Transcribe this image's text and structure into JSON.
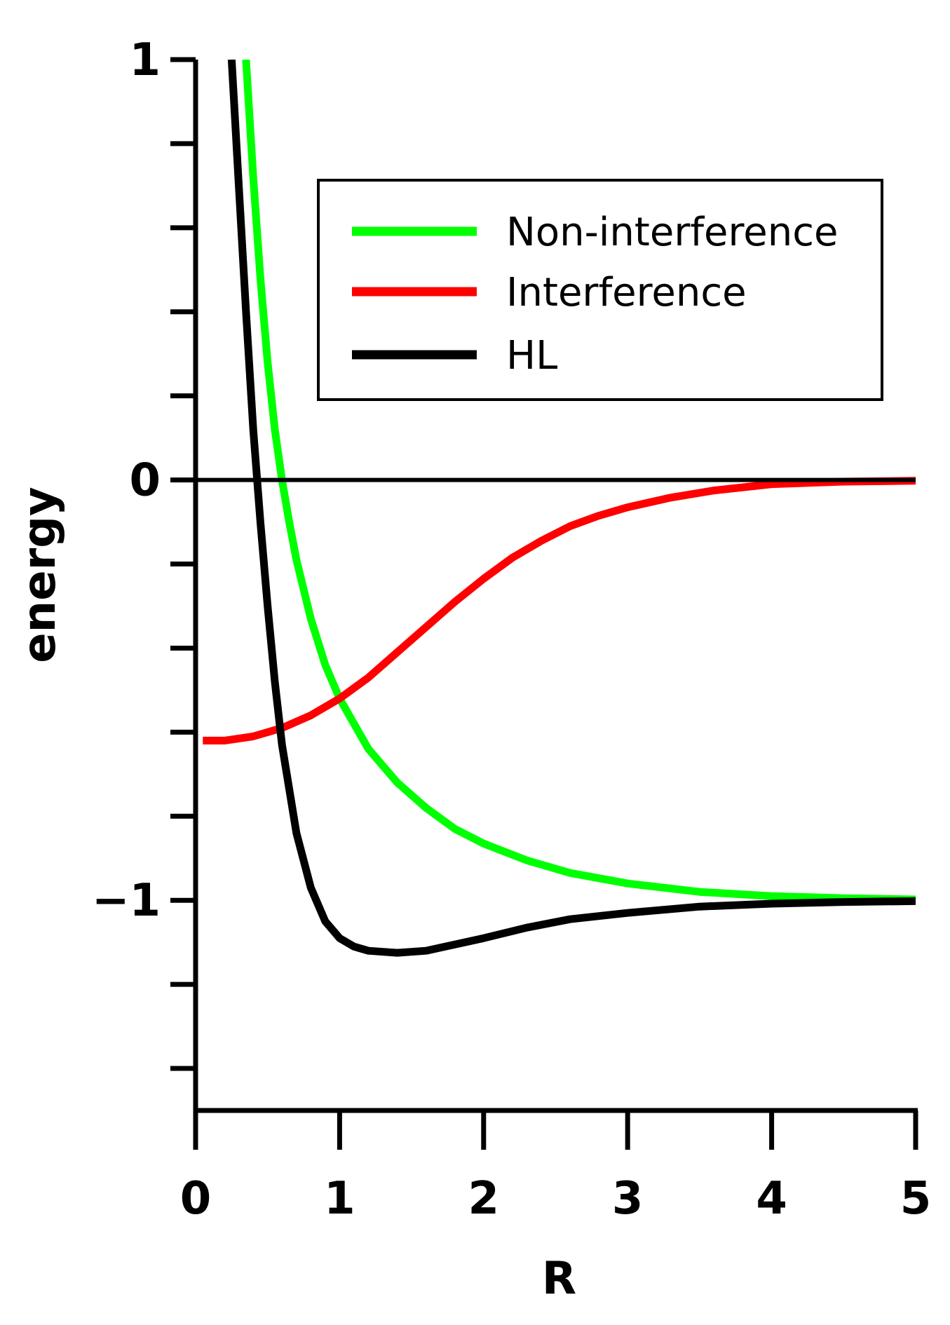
{
  "chart_data": {
    "type": "line",
    "title": "",
    "xlabel": "R",
    "ylabel": "energy",
    "xlim": [
      0,
      5
    ],
    "ylim": [
      -1.5,
      1
    ],
    "x_ticks": [
      0,
      1,
      2,
      3,
      4,
      5
    ],
    "x_tick_labels": [
      "0",
      "1",
      "2",
      "3",
      "4",
      "5"
    ],
    "y_ticks": [
      -1.4,
      -1.2,
      -1,
      -0.8,
      -0.6,
      -0.4,
      -0.2,
      0,
      0.2,
      0.4,
      0.6,
      0.8,
      1
    ],
    "y_tick_labels": [
      {
        "value": 1,
        "label": "1"
      },
      {
        "value": 0,
        "label": "0"
      },
      {
        "value": -1,
        "label": "−1"
      }
    ],
    "reference_line": {
      "y": 0
    },
    "grid": false,
    "legend_position": "top-right",
    "series": [
      {
        "name": "Non-interference",
        "color": "#00ff00",
        "x": [
          0.35,
          0.4,
          0.45,
          0.5,
          0.55,
          0.6,
          0.65,
          0.7,
          0.8,
          0.9,
          1.0,
          1.1,
          1.2,
          1.4,
          1.6,
          1.8,
          2.0,
          2.3,
          2.6,
          3.0,
          3.5,
          4.0,
          4.5,
          5.0
        ],
        "y": [
          1.0,
          0.72,
          0.48,
          0.28,
          0.12,
          0.0,
          -0.1,
          -0.19,
          -0.33,
          -0.44,
          -0.52,
          -0.58,
          -0.64,
          -0.72,
          -0.78,
          -0.83,
          -0.865,
          -0.905,
          -0.935,
          -0.96,
          -0.98,
          -0.99,
          -0.995,
          -0.998
        ]
      },
      {
        "name": "Interference",
        "color": "#ff0000",
        "x": [
          0.05,
          0.2,
          0.4,
          0.6,
          0.8,
          1.0,
          1.2,
          1.4,
          1.6,
          1.8,
          2.0,
          2.2,
          2.4,
          2.6,
          2.8,
          3.0,
          3.3,
          3.6,
          4.0,
          4.5,
          5.0
        ],
        "y": [
          -0.62,
          -0.62,
          -0.61,
          -0.59,
          -0.56,
          -0.52,
          -0.47,
          -0.41,
          -0.35,
          -0.29,
          -0.235,
          -0.185,
          -0.145,
          -0.11,
          -0.085,
          -0.065,
          -0.042,
          -0.025,
          -0.01,
          -0.004,
          -0.002
        ]
      },
      {
        "name": "HL",
        "color": "#000000",
        "x": [
          0.25,
          0.3,
          0.35,
          0.4,
          0.45,
          0.5,
          0.55,
          0.6,
          0.7,
          0.8,
          0.9,
          1.0,
          1.1,
          1.2,
          1.4,
          1.6,
          1.8,
          2.0,
          2.3,
          2.6,
          3.0,
          3.5,
          4.0,
          4.5,
          5.0
        ],
        "y": [
          1.0,
          0.7,
          0.4,
          0.12,
          -0.1,
          -0.3,
          -0.48,
          -0.63,
          -0.84,
          -0.97,
          -1.05,
          -1.09,
          -1.11,
          -1.12,
          -1.125,
          -1.12,
          -1.105,
          -1.09,
          -1.065,
          -1.045,
          -1.03,
          -1.015,
          -1.008,
          -1.004,
          -1.002
        ]
      }
    ]
  }
}
